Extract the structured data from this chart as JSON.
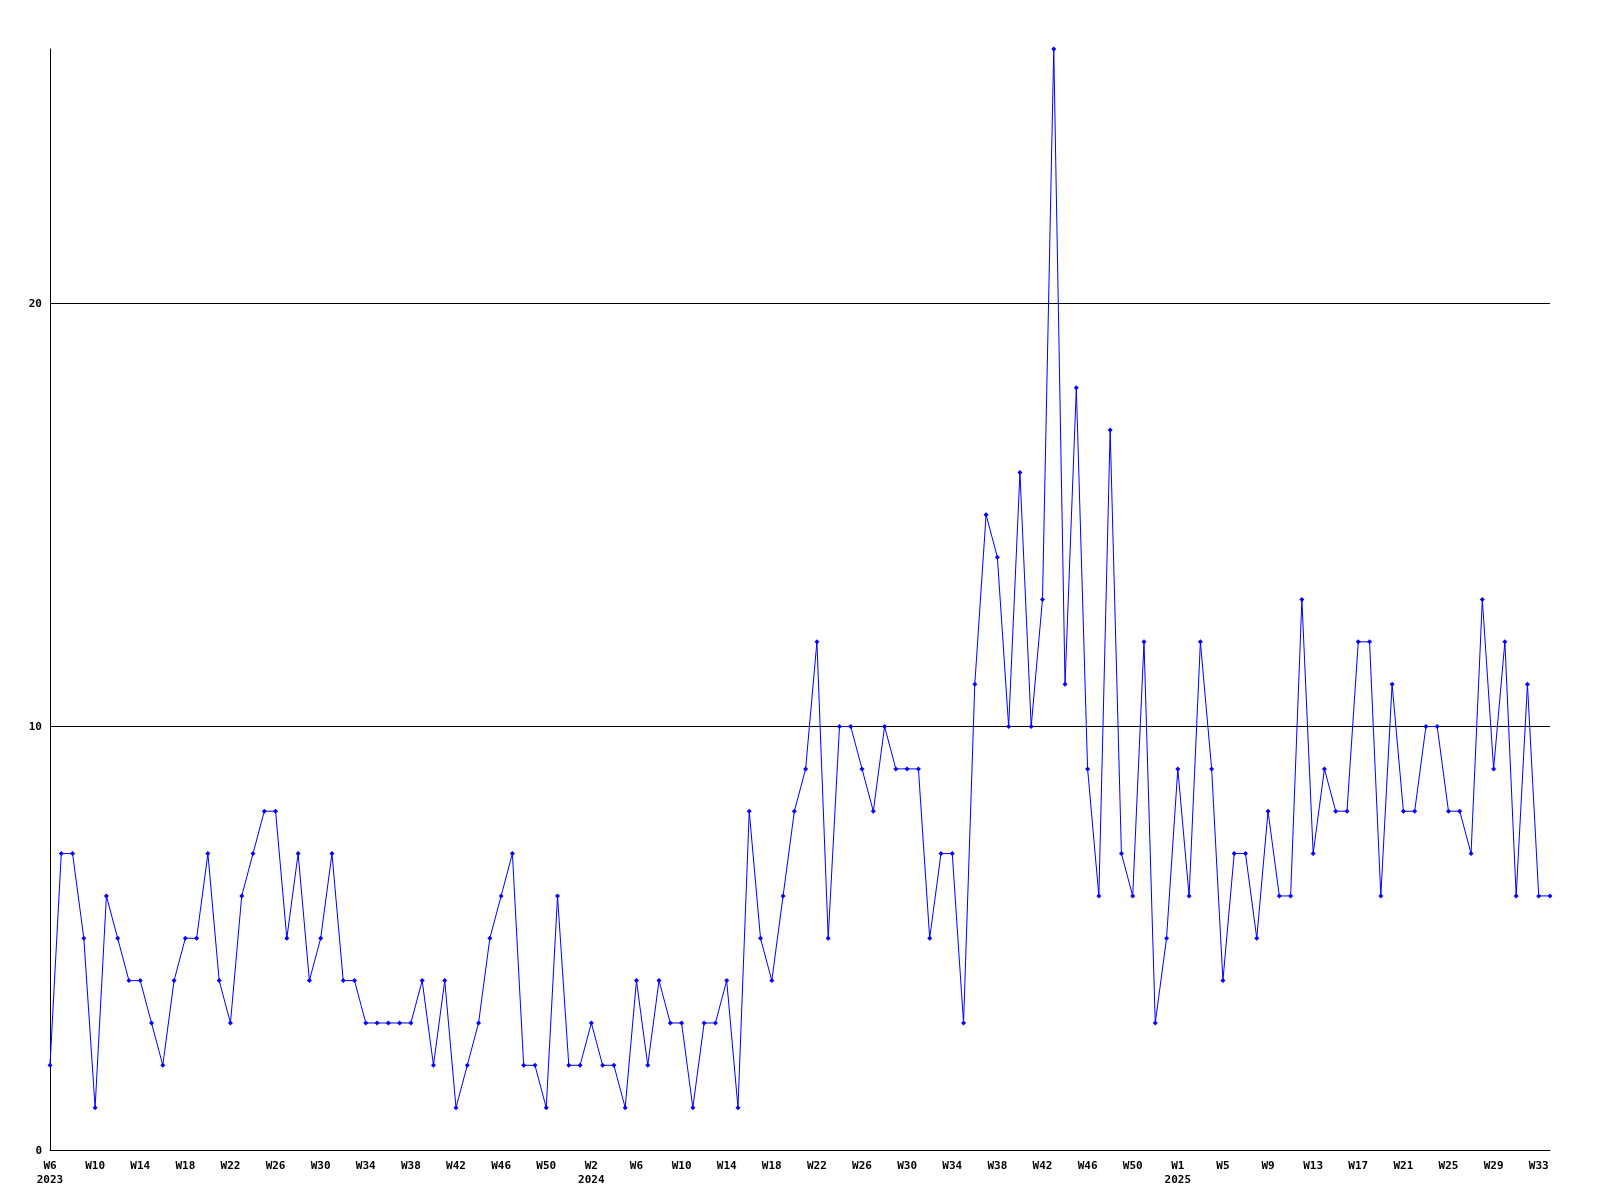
{
  "chart_data": {
    "type": "line",
    "categories": [
      "W6\n2023",
      null,
      null,
      null,
      "W10",
      null,
      null,
      null,
      "W14",
      null,
      null,
      null,
      "W18",
      null,
      null,
      null,
      "W22",
      null,
      null,
      null,
      "W26",
      null,
      null,
      null,
      "W30",
      null,
      null,
      null,
      "W34",
      null,
      null,
      null,
      "W38",
      null,
      null,
      null,
      "W42",
      null,
      null,
      null,
      "W46",
      null,
      null,
      null,
      "W50",
      null,
      null,
      null,
      "W2\n2024",
      null,
      null,
      null,
      "W6",
      null,
      null,
      null,
      "W10",
      null,
      null,
      null,
      "W14",
      null,
      null,
      null,
      "W18",
      null,
      null,
      null,
      "W22",
      null,
      null,
      null,
      "W26",
      null,
      null,
      null,
      "W30",
      null,
      null,
      null,
      "W34",
      null,
      null,
      null,
      "W38",
      null,
      null,
      null,
      "W42",
      null,
      null,
      null,
      "W46",
      null,
      null,
      null,
      "W50",
      null,
      null,
      null,
      "W1\n2025",
      null,
      null,
      null,
      "W5",
      null,
      null,
      null,
      "W9",
      null,
      null,
      null,
      "W13",
      null,
      null,
      null,
      "W17",
      null,
      null,
      null,
      "W21",
      null,
      null,
      null,
      "W25",
      null,
      null,
      null,
      "W29",
      null,
      null,
      null,
      "W33",
      null
    ],
    "series": [
      {
        "color": "#0000ff",
        "values": [
          2,
          7,
          7,
          5,
          1,
          6,
          5,
          4,
          4,
          3,
          2,
          4,
          5,
          5,
          7,
          4,
          3,
          6,
          7,
          8,
          8,
          5,
          7,
          4,
          5,
          7,
          4,
          4,
          3,
          3,
          3,
          3,
          3,
          4,
          2,
          4,
          1,
          2,
          3,
          5,
          6,
          7,
          2,
          2,
          1,
          6,
          2,
          2,
          3,
          2,
          2,
          1,
          4,
          2,
          4,
          3,
          3,
          1,
          3,
          3,
          4,
          1,
          8,
          5,
          4,
          6,
          8,
          9,
          12,
          5,
          10,
          10,
          9,
          8,
          10,
          9,
          9,
          9,
          5,
          7,
          7,
          3,
          11,
          15,
          14,
          10,
          16,
          10,
          13,
          26,
          11,
          18,
          9,
          6,
          17,
          7,
          6,
          12,
          3,
          5,
          9,
          6,
          12,
          9,
          4,
          7,
          7,
          5,
          8,
          6,
          6,
          13,
          7,
          9,
          8,
          8,
          12,
          12,
          6,
          11,
          8,
          8,
          10,
          10,
          8,
          8,
          7,
          13,
          9,
          12,
          6,
          11,
          6,
          6
        ]
      }
    ],
    "ylim": [
      0,
      26
    ],
    "yticks": [
      0,
      10,
      20
    ],
    "grid": "y",
    "marker": "diamond",
    "line_style": "solid"
  }
}
